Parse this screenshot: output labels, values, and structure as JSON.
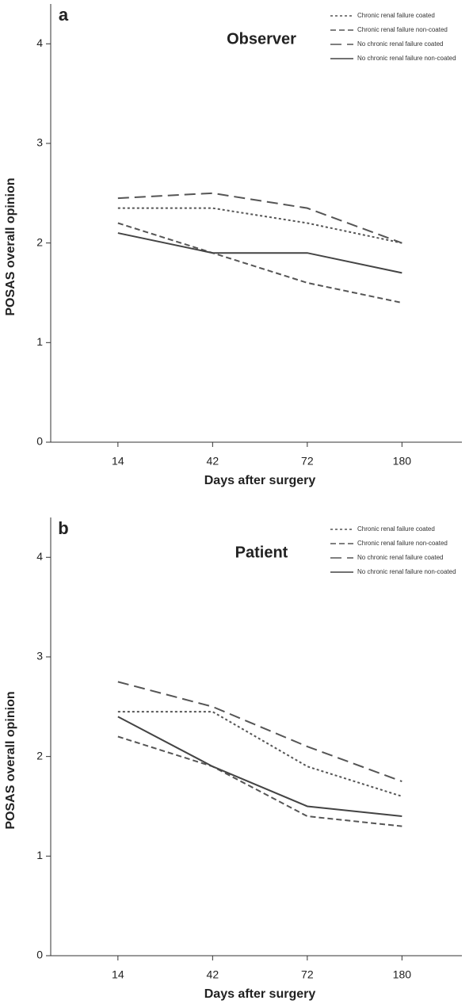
{
  "chart_data": [
    {
      "type": "line",
      "panel": "a",
      "title": "Observer",
      "x_label": "Days after surgery",
      "y_label": "POSAS overall opinion",
      "categories": [
        "14",
        "42",
        "72",
        "180"
      ],
      "ylim": [
        0,
        4.4
      ],
      "yticks": [
        0,
        1,
        2,
        3,
        4
      ],
      "series": [
        {
          "name": "Chronic renal failure coated",
          "color": "#555555",
          "dash": "dotted",
          "values": [
            2.35,
            2.35,
            2.2,
            2.0
          ]
        },
        {
          "name": "Chronic renal failure non-coated",
          "color": "#555555",
          "dash": "dashed",
          "values": [
            2.2,
            1.9,
            1.6,
            1.4
          ]
        },
        {
          "name": "No chronic renal failure coated",
          "color": "#555555",
          "dash": "long-dashed",
          "values": [
            2.45,
            2.5,
            2.35,
            2.0
          ]
        },
        {
          "name": "No chronic renal failure non-coated",
          "color": "#444444",
          "dash": "solid",
          "values": [
            2.1,
            1.9,
            1.9,
            1.7
          ]
        }
      ]
    },
    {
      "type": "line",
      "panel": "b",
      "title": "Patient",
      "x_label": "Days after surgery",
      "y_label": "POSAS overall opinion",
      "categories": [
        "14",
        "42",
        "72",
        "180"
      ],
      "ylim": [
        0,
        4.4
      ],
      "yticks": [
        0,
        1,
        2,
        3,
        4
      ],
      "series": [
        {
          "name": "Chronic renal failure coated",
          "color": "#555555",
          "dash": "dotted",
          "values": [
            2.45,
            2.45,
            1.9,
            1.6
          ]
        },
        {
          "name": "Chronic renal failure non-coated",
          "color": "#555555",
          "dash": "dashed",
          "values": [
            2.2,
            1.9,
            1.4,
            1.3
          ]
        },
        {
          "name": "No chronic renal failure coated",
          "color": "#555555",
          "dash": "long-dashed",
          "values": [
            2.75,
            2.5,
            2.1,
            1.75
          ]
        },
        {
          "name": "No chronic renal failure non-coated",
          "color": "#444444",
          "dash": "solid",
          "values": [
            2.4,
            1.9,
            1.5,
            1.4
          ]
        }
      ]
    }
  ]
}
